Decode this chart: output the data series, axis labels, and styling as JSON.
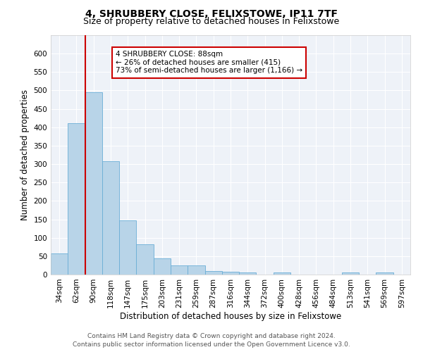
{
  "title_line1": "4, SHRUBBERY CLOSE, FELIXSTOWE, IP11 7TF",
  "title_line2": "Size of property relative to detached houses in Felixstowe",
  "xlabel": "Distribution of detached houses by size in Felixstowe",
  "ylabel": "Number of detached properties",
  "categories": [
    "34sqm",
    "62sqm",
    "90sqm",
    "118sqm",
    "147sqm",
    "175sqm",
    "203sqm",
    "231sqm",
    "259sqm",
    "287sqm",
    "316sqm",
    "344sqm",
    "372sqm",
    "400sqm",
    "428sqm",
    "456sqm",
    "484sqm",
    "513sqm",
    "541sqm",
    "569sqm",
    "597sqm"
  ],
  "values": [
    57,
    411,
    495,
    307,
    148,
    82,
    44,
    24,
    24,
    10,
    7,
    6,
    0,
    5,
    0,
    0,
    0,
    5,
    0,
    5,
    0
  ],
  "bar_color": "#b8d4e8",
  "bar_edge_color": "#6aaed6",
  "vline_x_index": 1.5,
  "vline_color": "#cc0000",
  "annotation_text": "4 SHRUBBERY CLOSE: 88sqm\n← 26% of detached houses are smaller (415)\n73% of semi-detached houses are larger (1,166) →",
  "annotation_box_color": "#ffffff",
  "annotation_box_edge": "#cc0000",
  "ylim_max": 650,
  "yticks": [
    0,
    50,
    100,
    150,
    200,
    250,
    300,
    350,
    400,
    450,
    500,
    550,
    600
  ],
  "footer_line1": "Contains HM Land Registry data © Crown copyright and database right 2024.",
  "footer_line2": "Contains public sector information licensed under the Open Government Licence v3.0.",
  "background_color": "#eef2f8",
  "grid_color": "#ffffff",
  "title_fontsize": 10,
  "subtitle_fontsize": 9,
  "axis_label_fontsize": 8.5,
  "tick_fontsize": 7.5,
  "annotation_fontsize": 7.5,
  "footer_fontsize": 6.5
}
